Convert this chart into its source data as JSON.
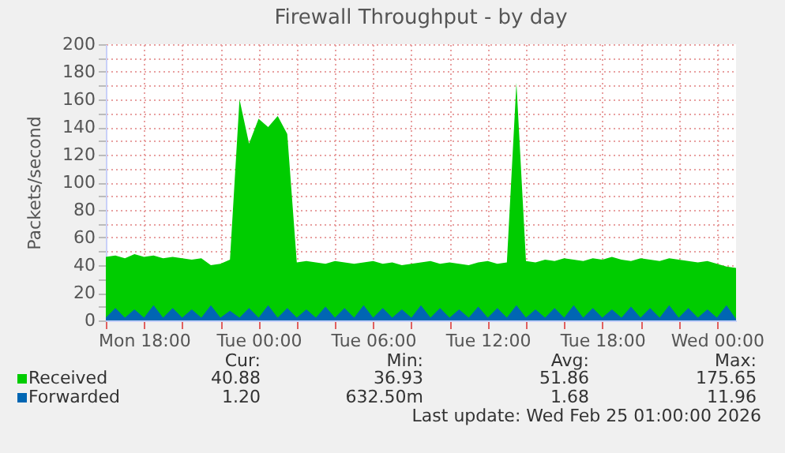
{
  "chart_data": {
    "type": "area",
    "title": "Firewall Throughput - by day",
    "ylabel": "Packets/second",
    "x": [
      "2026-02-23T16:00",
      "2026-02-23T16:30",
      "2026-02-23T17:00",
      "2026-02-23T17:30",
      "2026-02-23T18:00",
      "2026-02-23T18:30",
      "2026-02-23T19:00",
      "2026-02-23T19:30",
      "2026-02-23T20:00",
      "2026-02-23T20:30",
      "2026-02-23T21:00",
      "2026-02-23T21:30",
      "2026-02-23T22:00",
      "2026-02-23T22:30",
      "2026-02-23T23:00",
      "2026-02-23T23:30",
      "2026-02-24T00:00",
      "2026-02-24T00:30",
      "2026-02-24T01:00",
      "2026-02-24T01:30",
      "2026-02-24T02:00",
      "2026-02-24T02:30",
      "2026-02-24T03:00",
      "2026-02-24T03:30",
      "2026-02-24T04:00",
      "2026-02-24T04:30",
      "2026-02-24T05:00",
      "2026-02-24T05:30",
      "2026-02-24T06:00",
      "2026-02-24T06:30",
      "2026-02-24T07:00",
      "2026-02-24T07:30",
      "2026-02-24T08:00",
      "2026-02-24T08:30",
      "2026-02-24T09:00",
      "2026-02-24T09:30",
      "2026-02-24T10:00",
      "2026-02-24T10:30",
      "2026-02-24T11:00",
      "2026-02-24T11:30",
      "2026-02-24T12:00",
      "2026-02-24T12:30",
      "2026-02-24T13:00",
      "2026-02-24T13:30",
      "2026-02-24T14:00",
      "2026-02-24T14:30",
      "2026-02-24T15:00",
      "2026-02-24T15:30",
      "2026-02-24T16:00",
      "2026-02-24T16:30",
      "2026-02-24T17:00",
      "2026-02-24T17:30",
      "2026-02-24T18:00",
      "2026-02-24T18:30",
      "2026-02-24T19:00",
      "2026-02-24T19:30",
      "2026-02-24T20:00",
      "2026-02-24T20:30",
      "2026-02-24T21:00",
      "2026-02-24T21:30",
      "2026-02-24T22:00",
      "2026-02-24T22:30",
      "2026-02-24T23:00",
      "2026-02-24T23:30",
      "2026-02-25T00:00",
      "2026-02-25T00:30",
      "2026-02-25T01:00"
    ],
    "series": [
      {
        "name": "Received",
        "color": "#00cc00",
        "values": [
          46,
          47,
          45,
          48,
          46,
          47,
          45,
          46,
          45,
          44,
          45,
          40,
          41,
          44,
          160,
          128,
          146,
          140,
          148,
          135,
          42,
          43,
          42,
          41,
          43,
          42,
          41,
          42,
          43,
          41,
          42,
          40,
          41,
          42,
          43,
          41,
          42,
          41,
          40,
          42,
          43,
          41,
          42,
          172,
          43,
          42,
          44,
          43,
          45,
          44,
          43,
          45,
          44,
          46,
          44,
          43,
          45,
          44,
          43,
          45,
          44,
          43,
          42,
          43,
          41,
          39,
          38
        ]
      },
      {
        "name": "Forwarded",
        "color": "#0066b3",
        "values": [
          2,
          9,
          2,
          8,
          2,
          11,
          2,
          9,
          2,
          8,
          2,
          11,
          2,
          7,
          2,
          9,
          2,
          11,
          2,
          9,
          2,
          8,
          2,
          10,
          2,
          9,
          2,
          11,
          2,
          9,
          2,
          8,
          2,
          11,
          2,
          9,
          2,
          8,
          2,
          10,
          2,
          9,
          2,
          11,
          2,
          8,
          2,
          9,
          2,
          11,
          2,
          9,
          2,
          8,
          2,
          10,
          2,
          9,
          2,
          11,
          2,
          9,
          2,
          8,
          2,
          11,
          1
        ]
      }
    ],
    "xlim": [
      "2026-02-23T16:00",
      "2026-02-25T01:00"
    ],
    "xticks": [
      {
        "value": "2026-02-23T16:00",
        "label": null
      },
      {
        "value": "2026-02-23T18:00",
        "label": "Mon 18:00"
      },
      {
        "value": "2026-02-23T20:00",
        "label": null
      },
      {
        "value": "2026-02-23T22:00",
        "label": null
      },
      {
        "value": "2026-02-24T00:00",
        "label": "Tue 00:00"
      },
      {
        "value": "2026-02-24T02:00",
        "label": null
      },
      {
        "value": "2026-02-24T04:00",
        "label": null
      },
      {
        "value": "2026-02-24T06:00",
        "label": "Tue 06:00"
      },
      {
        "value": "2026-02-24T08:00",
        "label": null
      },
      {
        "value": "2026-02-24T10:00",
        "label": null
      },
      {
        "value": "2026-02-24T12:00",
        "label": "Tue 12:00"
      },
      {
        "value": "2026-02-24T14:00",
        "label": null
      },
      {
        "value": "2026-02-24T16:00",
        "label": null
      },
      {
        "value": "2026-02-24T18:00",
        "label": "Tue 18:00"
      },
      {
        "value": "2026-02-24T20:00",
        "label": null
      },
      {
        "value": "2026-02-24T22:00",
        "label": null
      },
      {
        "value": "2026-02-25T00:00",
        "label": "Wed 00:00"
      }
    ],
    "ylim": [
      0,
      200
    ],
    "yticks": [
      0,
      {
        "value": 10,
        "label": null
      },
      20,
      {
        "value": 30,
        "label": null
      },
      40,
      {
        "value": 50,
        "label": null
      },
      60,
      {
        "value": 70,
        "label": null
      },
      80,
      {
        "value": 90,
        "label": null
      },
      100,
      {
        "value": 110,
        "label": null
      },
      120,
      {
        "value": 130,
        "label": null
      },
      140,
      {
        "value": 150,
        "label": null
      },
      160,
      {
        "value": 170,
        "label": null
      },
      180,
      {
        "value": 190,
        "label": null
      },
      200
    ],
    "grid": true,
    "legend": "bottom left",
    "annotations": [
      "Cur:",
      "Min:",
      "Avg:",
      "Max:",
      "40.88",
      "36.93",
      "51.86",
      "175.65",
      "1.20",
      "632.50m",
      "1.68",
      "11.96",
      "Last update: Wed Feb 25 01:00:00 2026"
    ]
  }
}
